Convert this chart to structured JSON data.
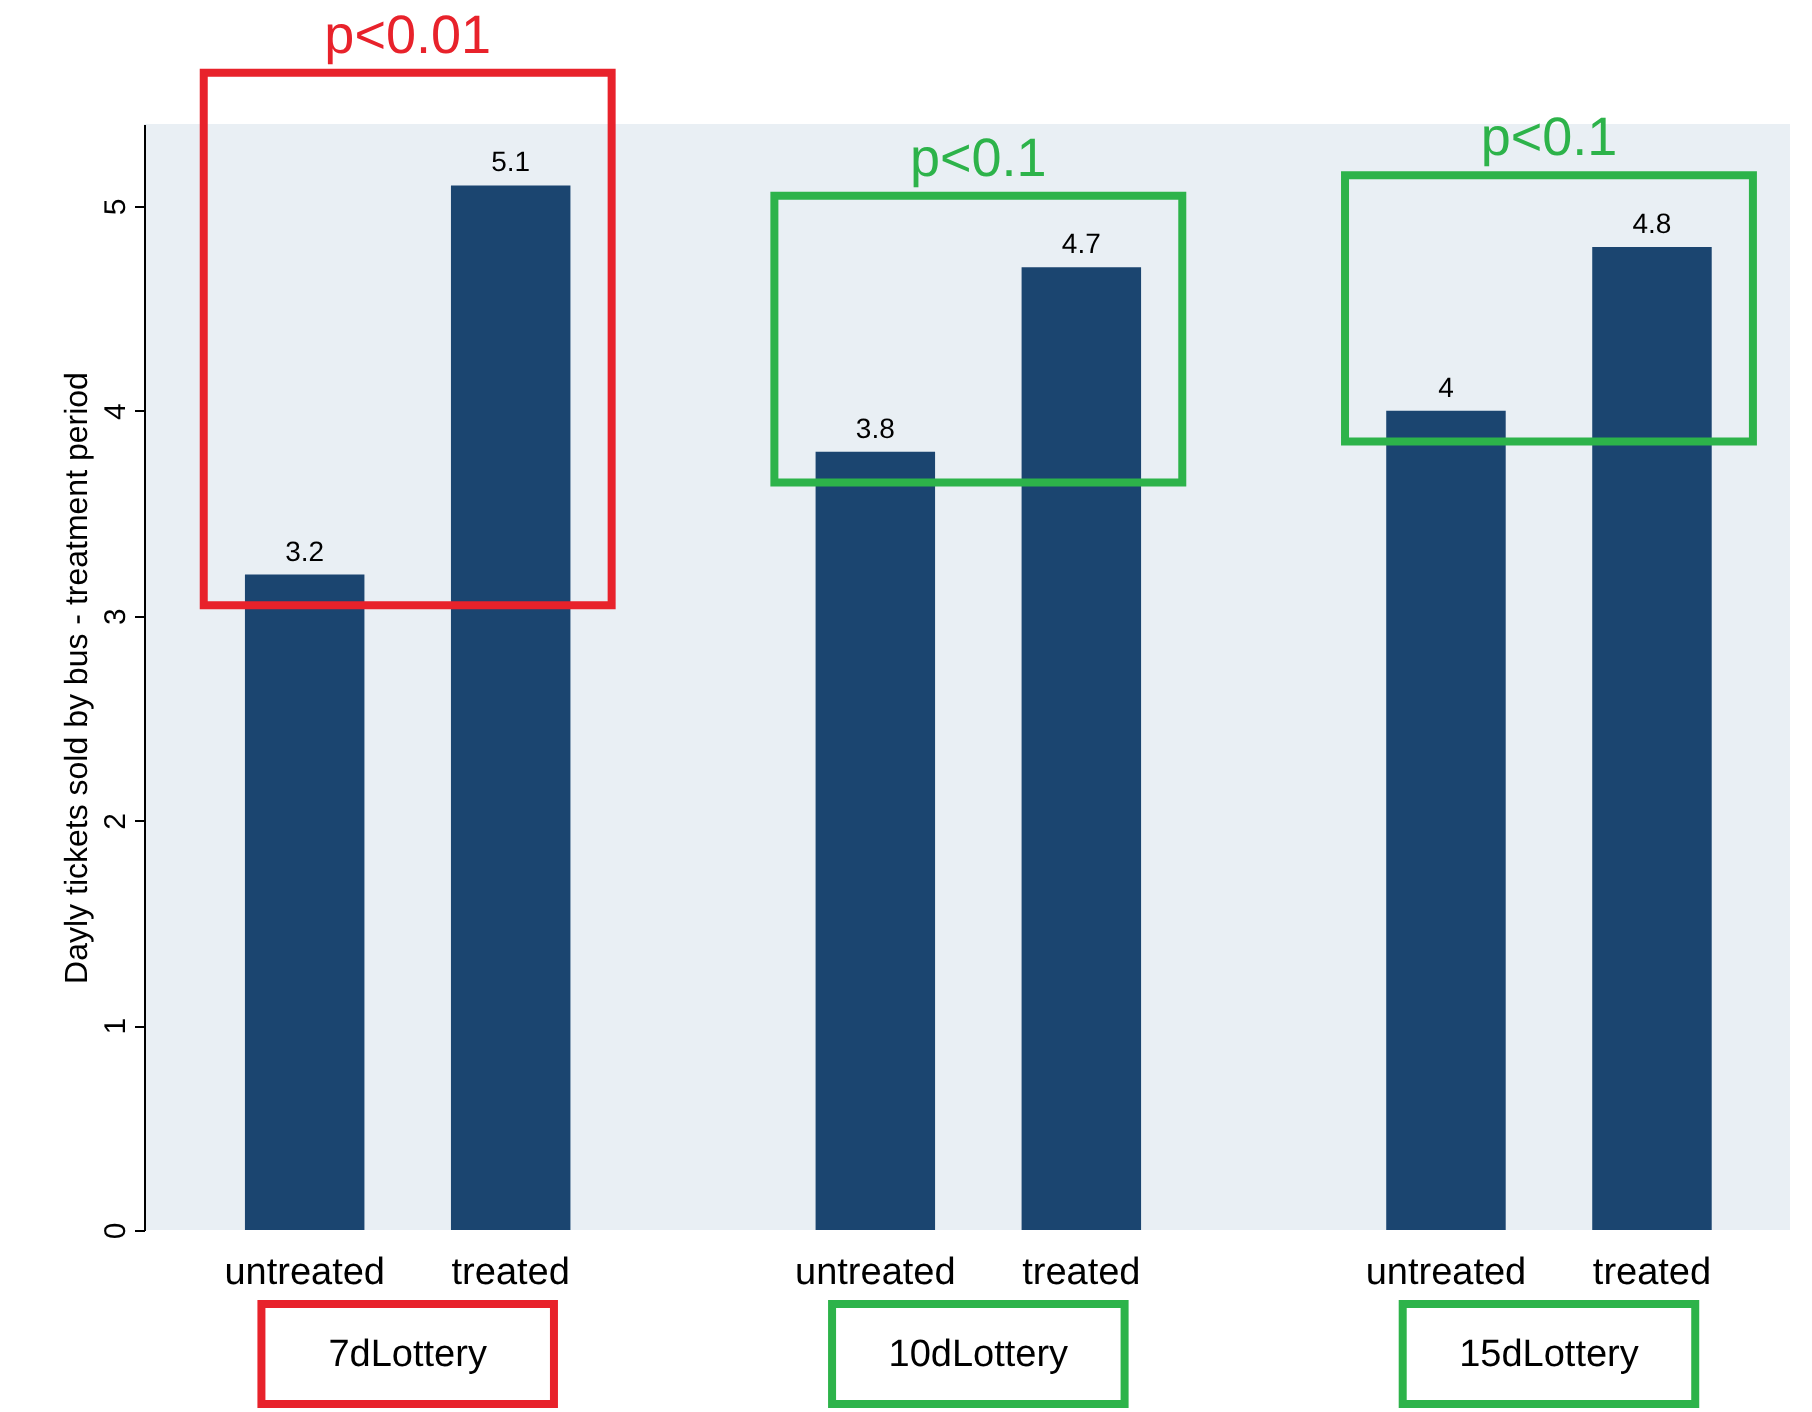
{
  "chart_data": {
    "type": "bar",
    "ylabel": "Dayly tickets sold by bus - treatment period",
    "categories": [
      "untreated",
      "treated",
      "untreated",
      "treated",
      "untreated",
      "treated"
    ],
    "values": [
      3.2,
      5.1,
      3.8,
      4.7,
      4,
      4.8
    ],
    "color": "#1b4570",
    "ylim": [
      0,
      5.4
    ],
    "yticks": [
      0,
      1,
      2,
      3,
      4,
      5
    ],
    "grid": false,
    "data_labels": true,
    "annotations": [
      "p<0.01",
      "p<0.1",
      "p<0.1",
      "7dLottery",
      "10dLottery",
      "15dLottery"
    ]
  }
}
